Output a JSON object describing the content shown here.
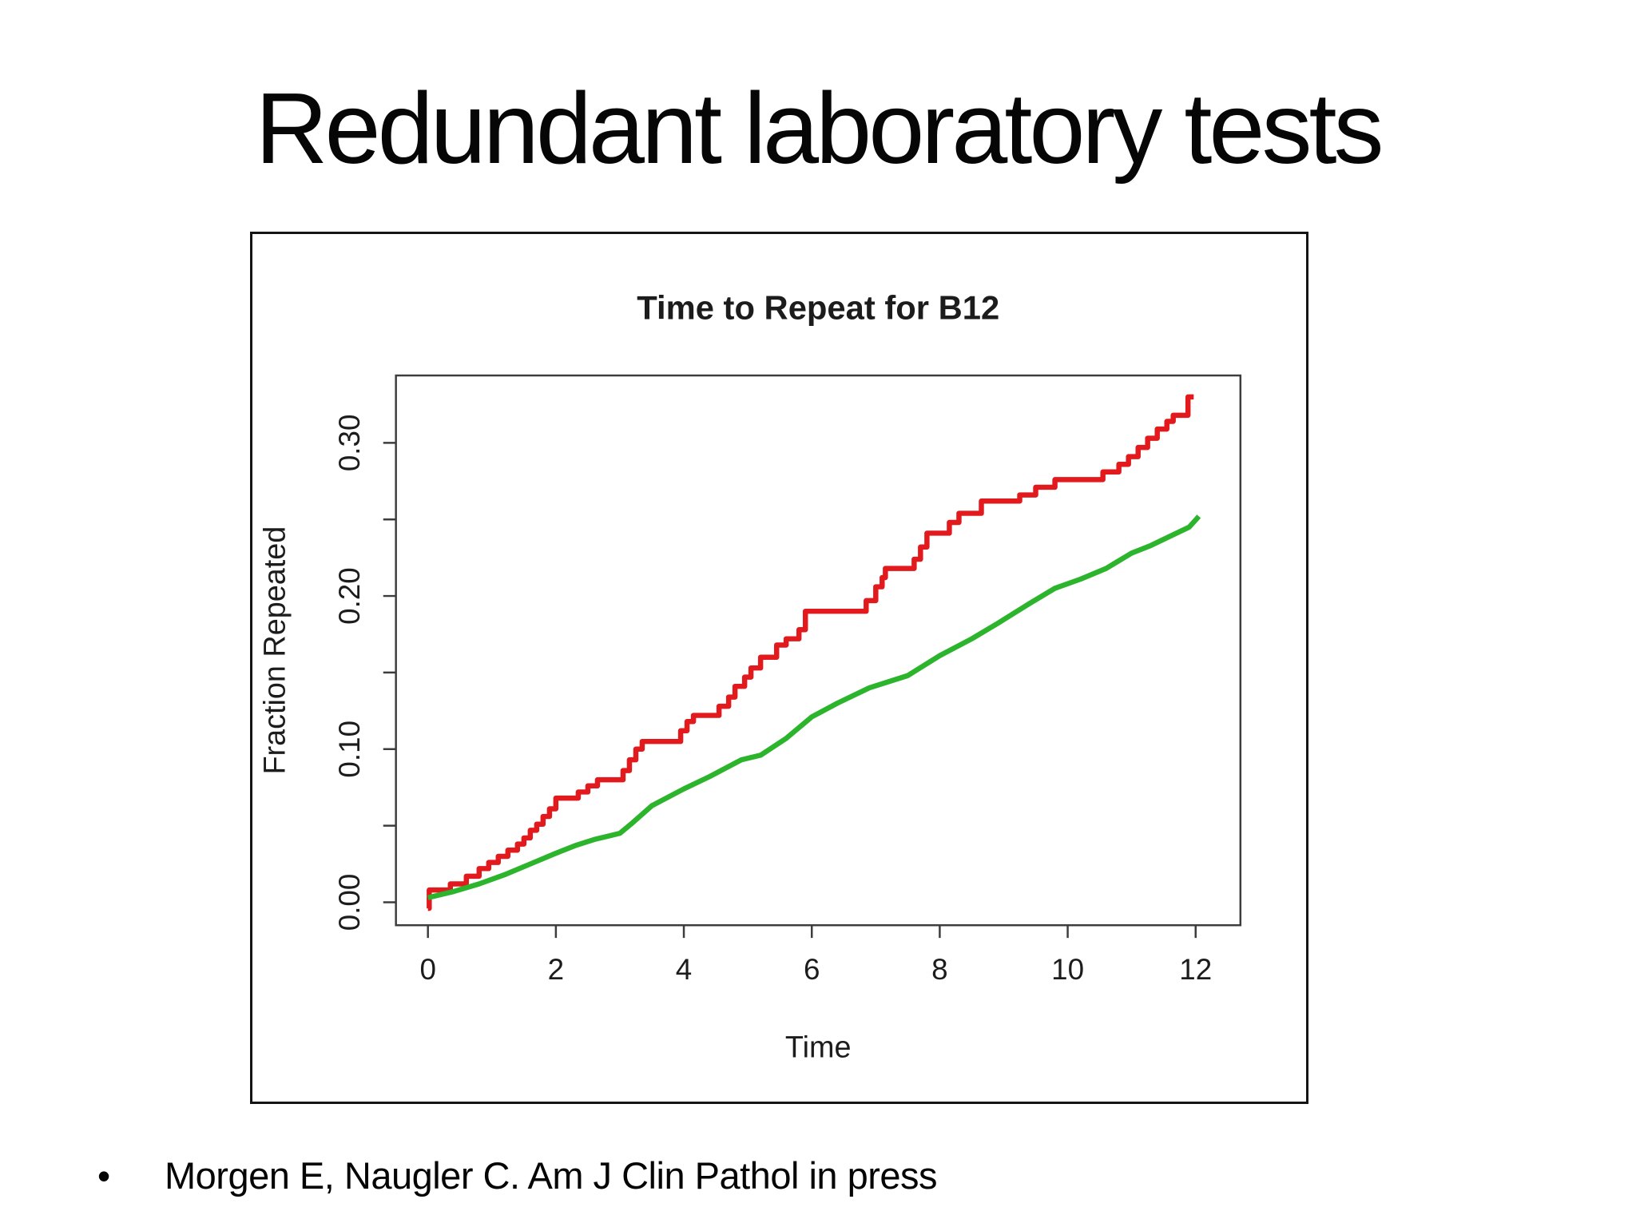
{
  "slide": {
    "title": "Redundant laboratory tests",
    "bullet_marker": "•",
    "bullet_text": "Morgen E, Naugler C. Am J Clin Pathol in press"
  },
  "chart_data": {
    "type": "line",
    "title": "Time to Repeat for B12",
    "xlabel": "Time",
    "ylabel": "Fraction Repeated",
    "xlim": [
      -0.5,
      12.7
    ],
    "ylim": [
      -0.015,
      0.344
    ],
    "x_ticks": [
      0,
      2,
      4,
      6,
      8,
      10,
      12
    ],
    "y_ticks": [
      0,
      0.05,
      0.1,
      0.15,
      0.2,
      0.25,
      0.3
    ],
    "y_label_ticks": [
      0,
      0.1,
      0.2,
      0.3
    ],
    "grid": false,
    "legend": "none",
    "frame_color": "#3d3d3d",
    "text_color": "#1c1c1c",
    "series": [
      {
        "name": "repeat-fraction-upper-red",
        "color": "#e21a1d",
        "style": "step",
        "points": [
          [
            0,
            -0.004
          ],
          [
            0.02,
            0.008
          ],
          [
            0.35,
            0.012
          ],
          [
            0.6,
            0.017
          ],
          [
            0.8,
            0.022
          ],
          [
            0.95,
            0.026
          ],
          [
            1.1,
            0.03
          ],
          [
            1.25,
            0.034
          ],
          [
            1.4,
            0.038
          ],
          [
            1.5,
            0.042
          ],
          [
            1.6,
            0.047
          ],
          [
            1.7,
            0.051
          ],
          [
            1.8,
            0.056
          ],
          [
            1.9,
            0.061
          ],
          [
            2.0,
            0.068
          ],
          [
            2.35,
            0.072
          ],
          [
            2.5,
            0.076
          ],
          [
            2.65,
            0.08
          ],
          [
            3.05,
            0.086
          ],
          [
            3.15,
            0.093
          ],
          [
            3.25,
            0.1
          ],
          [
            3.35,
            0.105
          ],
          [
            3.95,
            0.112
          ],
          [
            4.05,
            0.118
          ],
          [
            4.15,
            0.122
          ],
          [
            4.55,
            0.128
          ],
          [
            4.7,
            0.134
          ],
          [
            4.8,
            0.141
          ],
          [
            4.95,
            0.147
          ],
          [
            5.05,
            0.153
          ],
          [
            5.2,
            0.16
          ],
          [
            5.45,
            0.168
          ],
          [
            5.6,
            0.172
          ],
          [
            5.8,
            0.178
          ],
          [
            5.9,
            0.19
          ],
          [
            6.85,
            0.197
          ],
          [
            7.0,
            0.206
          ],
          [
            7.1,
            0.212
          ],
          [
            7.15,
            0.218
          ],
          [
            7.6,
            0.224
          ],
          [
            7.7,
            0.232
          ],
          [
            7.8,
            0.241
          ],
          [
            8.15,
            0.248
          ],
          [
            8.3,
            0.254
          ],
          [
            8.65,
            0.262
          ],
          [
            9.25,
            0.266
          ],
          [
            9.5,
            0.271
          ],
          [
            9.8,
            0.276
          ],
          [
            10.55,
            0.281
          ],
          [
            10.8,
            0.286
          ],
          [
            10.95,
            0.291
          ],
          [
            11.1,
            0.297
          ],
          [
            11.25,
            0.303
          ],
          [
            11.4,
            0.309
          ],
          [
            11.55,
            0.314
          ],
          [
            11.65,
            0.318
          ],
          [
            11.88,
            0.33
          ],
          [
            11.97,
            0.33
          ]
        ]
      },
      {
        "name": "repeat-fraction-lower-green",
        "color": "#2cb52c",
        "style": "linear",
        "points": [
          [
            0,
            0.003
          ],
          [
            0.4,
            0.007
          ],
          [
            0.8,
            0.012
          ],
          [
            1.2,
            0.018
          ],
          [
            1.6,
            0.025
          ],
          [
            2.0,
            0.032
          ],
          [
            2.3,
            0.037
          ],
          [
            2.6,
            0.041
          ],
          [
            3.0,
            0.045
          ],
          [
            3.2,
            0.052
          ],
          [
            3.5,
            0.063
          ],
          [
            4.0,
            0.074
          ],
          [
            4.4,
            0.082
          ],
          [
            4.9,
            0.093
          ],
          [
            5.2,
            0.096
          ],
          [
            5.6,
            0.107
          ],
          [
            6.0,
            0.121
          ],
          [
            6.4,
            0.13
          ],
          [
            6.9,
            0.14
          ],
          [
            7.5,
            0.148
          ],
          [
            8.0,
            0.161
          ],
          [
            8.5,
            0.172
          ],
          [
            8.9,
            0.182
          ],
          [
            9.4,
            0.195
          ],
          [
            9.8,
            0.205
          ],
          [
            10.2,
            0.211
          ],
          [
            10.6,
            0.218
          ],
          [
            11.0,
            0.228
          ],
          [
            11.3,
            0.233
          ],
          [
            11.6,
            0.239
          ],
          [
            11.9,
            0.245
          ],
          [
            12.05,
            0.252
          ]
        ]
      }
    ]
  }
}
